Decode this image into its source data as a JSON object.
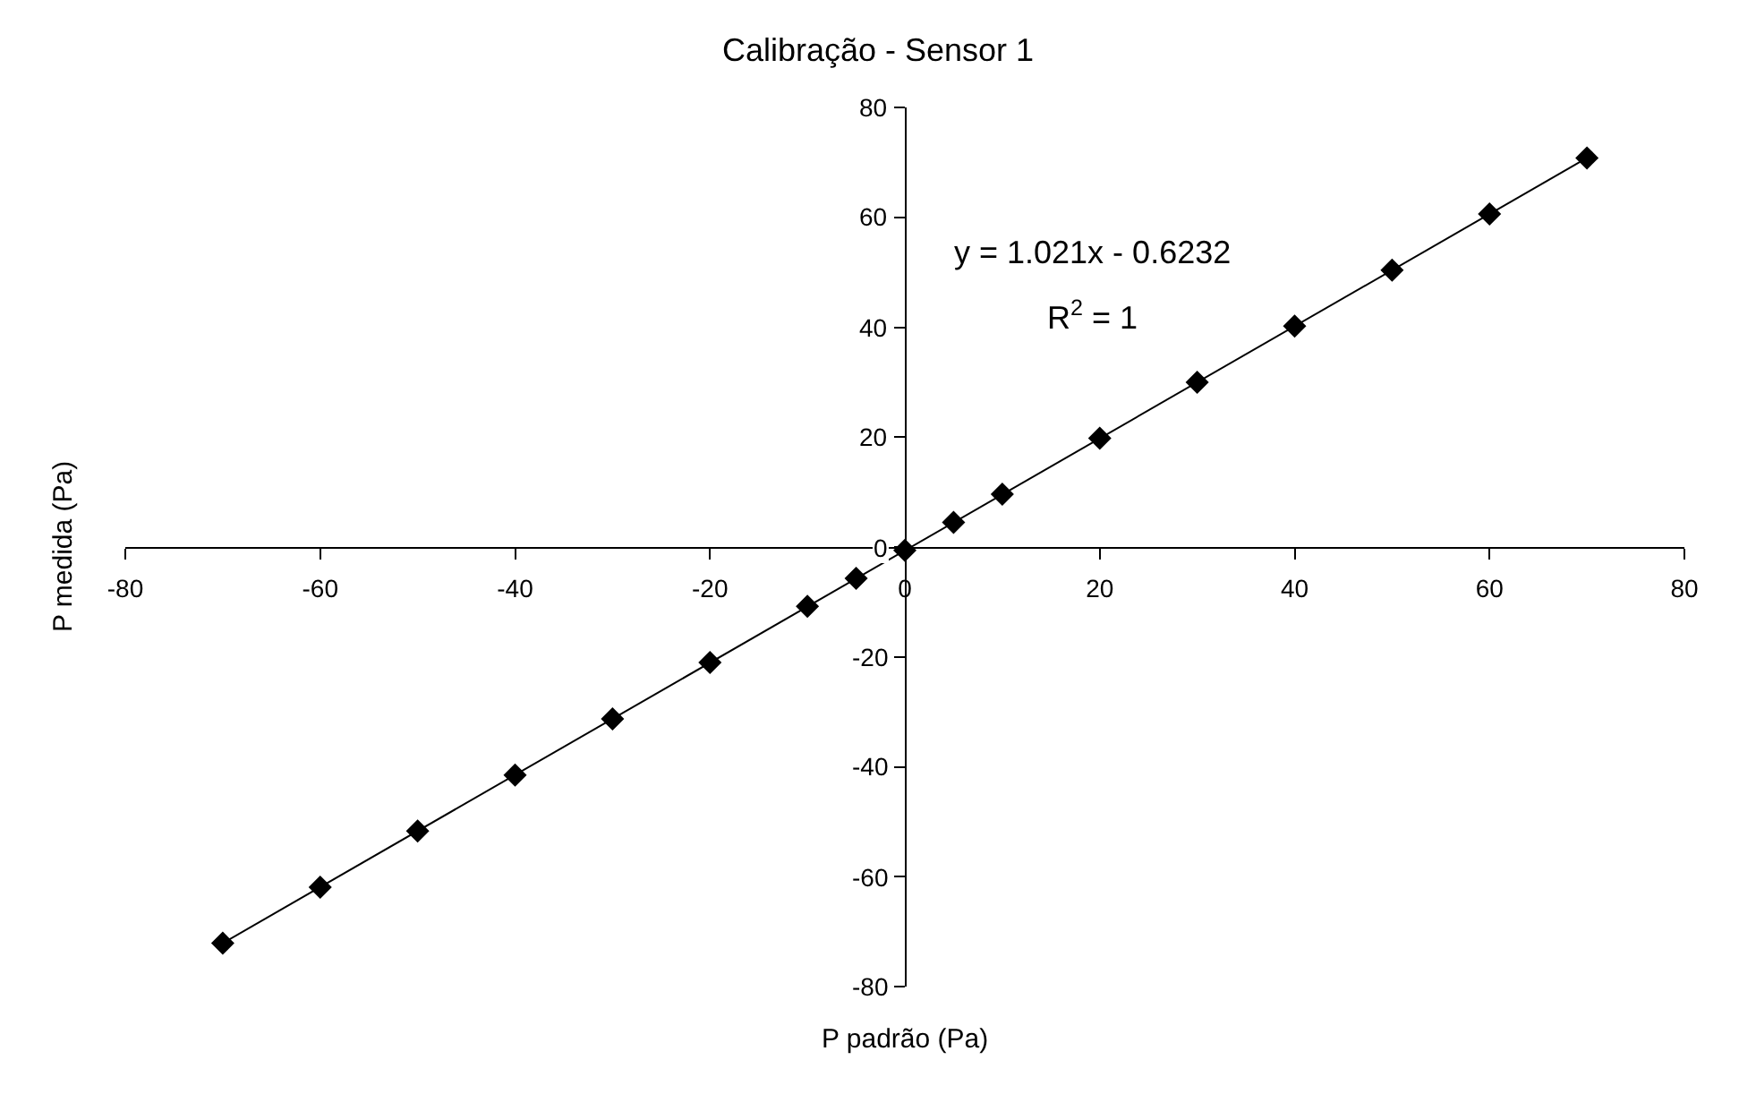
{
  "chart_data": {
    "type": "scatter",
    "title": "Calibração - Sensor 1",
    "xlabel": "P padrão (Pa)",
    "ylabel": "P medida (Pa)",
    "x": [
      -70,
      -60,
      -50,
      -40,
      -30,
      -20,
      -10,
      -5,
      0,
      5,
      10,
      20,
      30,
      40,
      50,
      60,
      70
    ],
    "series": [
      {
        "color": "#000000",
        "marker": "diamond",
        "values": [
          -72.1,
          -61.9,
          -51.7,
          -41.5,
          -31.3,
          -21.0,
          -10.8,
          -5.7,
          -0.6,
          4.5,
          9.6,
          19.8,
          30.0,
          40.2,
          50.4,
          60.6,
          70.8
        ]
      },
      {
        "type": "line",
        "color": "#000000",
        "x": [
          -70,
          70
        ],
        "values": [
          -72.1,
          70.8
        ]
      }
    ],
    "annotations": [
      "y = 1.021x - 0.6232",
      "R$^{2}$ = 1"
    ],
    "xlim": [
      -80,
      80
    ],
    "xticks": [
      -80,
      -60,
      -40,
      -20,
      0,
      20,
      40,
      60,
      80
    ],
    "ylim": [
      -80,
      80
    ],
    "yticks": [
      -80,
      -60,
      -40,
      -20,
      0,
      20,
      40,
      60,
      80
    ]
  }
}
